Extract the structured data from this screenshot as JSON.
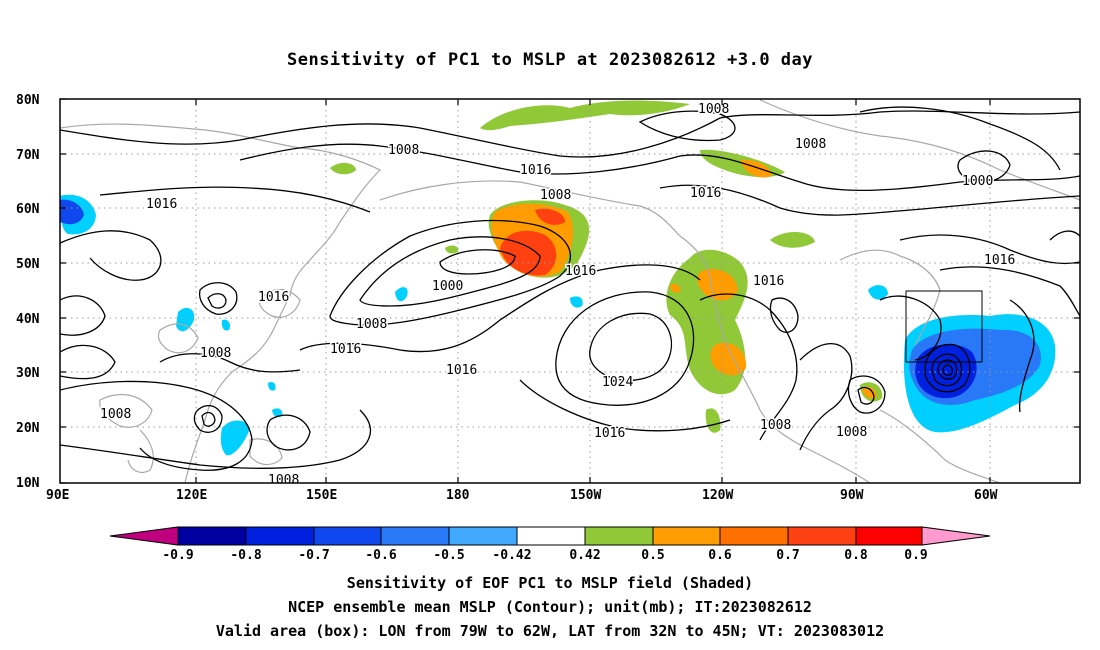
{
  "title": "Sensitivity of PC1 to MSLP at 2023082612 +3.0 day",
  "map": {
    "lat_ticks": [
      "80N",
      "70N",
      "60N",
      "50N",
      "40N",
      "30N",
      "20N",
      "10N"
    ],
    "lon_ticks": [
      "90E",
      "120E",
      "150E",
      "180",
      "150W",
      "120W",
      "90W",
      "60W"
    ],
    "grid": true,
    "valid_box": {
      "lon_from": "79W",
      "lon_to": "62W",
      "lat_from": "32N",
      "lat_to": "45N"
    },
    "contour_labels": [
      {
        "id": "c1",
        "text": "1008"
      },
      {
        "id": "c2",
        "text": "1008"
      },
      {
        "id": "c3",
        "text": "1008"
      },
      {
        "id": "c4",
        "text": "1016"
      },
      {
        "id": "c5",
        "text": "1016"
      },
      {
        "id": "c6",
        "text": "1008"
      },
      {
        "id": "c7",
        "text": "1016"
      },
      {
        "id": "c8",
        "text": "1000"
      },
      {
        "id": "c9",
        "text": "1016"
      },
      {
        "id": "c10",
        "text": "1016"
      },
      {
        "id": "c11",
        "text": "1000"
      },
      {
        "id": "c12",
        "text": "1016"
      },
      {
        "id": "c13",
        "text": "1016"
      },
      {
        "id": "c14",
        "text": "1008"
      },
      {
        "id": "c15",
        "text": "1016"
      },
      {
        "id": "c16",
        "text": "1008"
      },
      {
        "id": "c17",
        "text": "1016"
      },
      {
        "id": "c18",
        "text": "1024"
      },
      {
        "id": "c19",
        "text": "1016"
      },
      {
        "id": "c20",
        "text": "1008"
      },
      {
        "id": "c21",
        "text": "1008"
      },
      {
        "id": "c22",
        "text": "1008"
      },
      {
        "id": "c23",
        "text": "1008"
      }
    ]
  },
  "colorbar": {
    "labels": [
      "-0.9",
      "-0.8",
      "-0.7",
      "-0.6",
      "-0.5",
      "-0.42",
      "0.42",
      "0.5",
      "0.6",
      "0.7",
      "0.8",
      "0.9"
    ],
    "colors": [
      "#0000a0",
      "#0020e0",
      "#1048f0",
      "#2878f8",
      "#40a8ff",
      "#00d0ff",
      "#ffffff",
      "#90c838",
      "#ff9c00",
      "#ff7000",
      "#ff4010",
      "#ff0000"
    ],
    "low_end_color": "#c00080",
    "high_end_color": "#ff9ad0"
  },
  "captions": {
    "line1": "Sensitivity of EOF PC1 to MSLP field (Shaded)",
    "line2": "NCEP ensemble mean MSLP (Contour); unit(mb); IT:2023082612",
    "line3": "Valid area (box): LON from 79W to 62W, LAT from 32N to 45N; VT: 2023083012"
  }
}
